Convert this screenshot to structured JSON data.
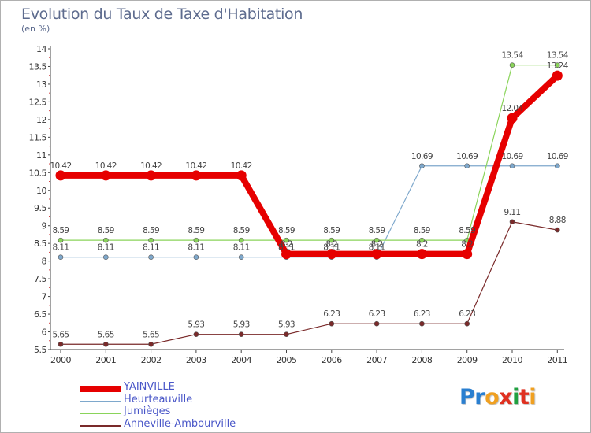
{
  "title": "Evolution du Taux de Taxe d'Habitation",
  "subtitle": "(en %)",
  "logo": {
    "text": "Proxiti",
    "letters": [
      "P",
      "r",
      "o",
      "x",
      "i",
      "t",
      "i"
    ],
    "colors": [
      "#2a7fd0",
      "#2a7fd0",
      "#f0a020",
      "#e03020",
      "#20a040",
      "#e03020",
      "#f0a020"
    ]
  },
  "chart_data": {
    "type": "line",
    "title": "Evolution du Taux de Taxe d'Habitation",
    "ylabel": "(en %)",
    "xlabel": "",
    "x": [
      "2000",
      "2001",
      "2002",
      "2003",
      "2004",
      "2005",
      "2006",
      "2007",
      "2008",
      "2009",
      "2010",
      "2011"
    ],
    "ylim": [
      5.5,
      14
    ],
    "yticks": [
      "5.5",
      "6",
      "6.5",
      "7",
      "7.5",
      "8",
      "8.5",
      "9",
      "9.5",
      "10",
      "10.5",
      "11",
      "11.5",
      "12",
      "12.5",
      "13",
      "13.5",
      "14"
    ],
    "grid": false,
    "legend_position": "bottom-left",
    "series": [
      {
        "name": "YAINVILLE",
        "color": "#e60000",
        "emphasis": true,
        "values": [
          10.42,
          10.42,
          10.42,
          10.42,
          10.42,
          8.2,
          8.2,
          8.2,
          8.2,
          8.2,
          12.04,
          13.24
        ],
        "labels": [
          "10.42",
          "10.42",
          "10.42",
          "10.42",
          "10.42",
          "8.2",
          "8.2",
          "8.2",
          "8.2",
          "8.2",
          "12.04",
          "13.24"
        ]
      },
      {
        "name": "Heurteauville",
        "color": "#7ea8cc",
        "values": [
          8.11,
          8.11,
          8.11,
          8.11,
          8.11,
          8.11,
          8.11,
          8.11,
          10.69,
          10.69,
          10.69,
          10.69
        ],
        "labels": [
          "8.11",
          "8.11",
          "8.11",
          "8.11",
          "8.11",
          "8.11",
          "8.11",
          "8.11",
          "10.69",
          "10.69",
          "10.69",
          "10.69"
        ]
      },
      {
        "name": "Jumièges",
        "color": "#8ad45a",
        "values": [
          8.59,
          8.59,
          8.59,
          8.59,
          8.59,
          8.59,
          8.59,
          8.59,
          8.59,
          8.59,
          13.54,
          13.54
        ],
        "labels": [
          "8.59",
          "8.59",
          "8.59",
          "8.59",
          "8.59",
          "8.59",
          "8.59",
          "8.59",
          "8.59",
          "8.59",
          "13.54",
          "13.54"
        ]
      },
      {
        "name": "Anneville-Ambourville",
        "color": "#7a2a2a",
        "values": [
          5.65,
          5.65,
          5.65,
          5.93,
          5.93,
          5.93,
          6.23,
          6.23,
          6.23,
          6.23,
          9.11,
          8.88
        ],
        "labels": [
          "5.65",
          "5.65",
          "5.65",
          "5.93",
          "5.93",
          "5.93",
          "6.23",
          "6.23",
          "6.23",
          "6.23",
          "9.11",
          "8.88"
        ]
      }
    ]
  }
}
